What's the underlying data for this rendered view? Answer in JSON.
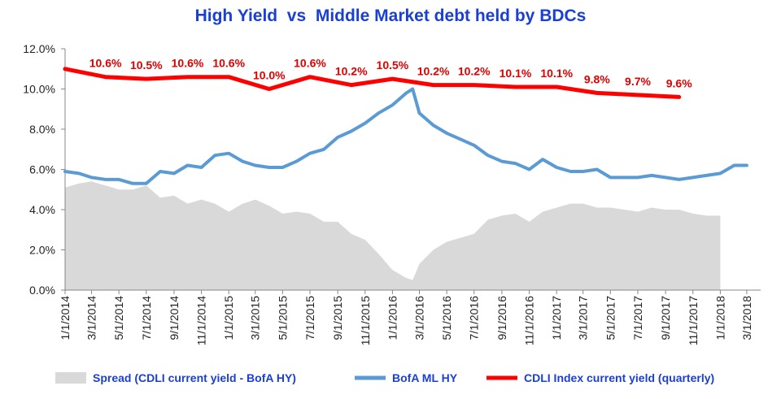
{
  "chart_data": {
    "type": "line",
    "title": "High Yield  vs  Middle Market debt held by BDCs",
    "ylim": [
      0,
      12
    ],
    "yticks": [
      "0.0%",
      "2.0%",
      "4.0%",
      "6.0%",
      "8.0%",
      "10.0%",
      "12.0%"
    ],
    "xticks": [
      "1/1/2014",
      "3/1/2014",
      "5/1/2014",
      "7/1/2014",
      "9/1/2014",
      "11/1/2014",
      "1/1/2015",
      "3/1/2015",
      "5/1/2015",
      "7/1/2015",
      "9/1/2015",
      "11/1/2015",
      "1/1/2016",
      "3/1/2016",
      "5/1/2016",
      "7/1/2016",
      "9/1/2016",
      "11/1/2016",
      "1/1/2017",
      "3/1/2017",
      "5/1/2017",
      "7/1/2017",
      "9/1/2017",
      "11/1/2017",
      "1/1/2018",
      "3/1/2018"
    ],
    "grid": false,
    "legend_position": "bottom",
    "series": [
      {
        "name": "Spread (CDLI current yield - BofA HY)",
        "kind": "area",
        "color": "#d9d9d9",
        "points": [
          [
            "1/1/2014",
            5.1
          ],
          [
            "2/1/2014",
            5.3
          ],
          [
            "3/1/2014",
            5.4
          ],
          [
            "4/1/2014",
            5.2
          ],
          [
            "5/1/2014",
            5.0
          ],
          [
            "6/1/2014",
            5.0
          ],
          [
            "7/1/2014",
            5.2
          ],
          [
            "8/1/2014",
            4.6
          ],
          [
            "9/1/2014",
            4.7
          ],
          [
            "10/1/2014",
            4.3
          ],
          [
            "11/1/2014",
            4.5
          ],
          [
            "12/1/2014",
            4.3
          ],
          [
            "1/1/2015",
            3.9
          ],
          [
            "2/1/2015",
            4.3
          ],
          [
            "3/1/2015",
            4.5
          ],
          [
            "4/1/2015",
            4.2
          ],
          [
            "5/1/2015",
            3.8
          ],
          [
            "6/1/2015",
            3.9
          ],
          [
            "7/1/2015",
            3.8
          ],
          [
            "8/1/2015",
            3.4
          ],
          [
            "9/1/2015",
            3.4
          ],
          [
            "10/1/2015",
            2.8
          ],
          [
            "11/1/2015",
            2.5
          ],
          [
            "12/1/2015",
            1.8
          ],
          [
            "1/1/2016",
            1.0
          ],
          [
            "2/1/2016",
            0.6
          ],
          [
            "2/15/2016",
            0.5
          ],
          [
            "3/1/2016",
            1.3
          ],
          [
            "4/1/2016",
            2.0
          ],
          [
            "5/1/2016",
            2.4
          ],
          [
            "6/1/2016",
            2.6
          ],
          [
            "7/1/2016",
            2.8
          ],
          [
            "8/1/2016",
            3.5
          ],
          [
            "9/1/2016",
            3.7
          ],
          [
            "10/1/2016",
            3.8
          ],
          [
            "11/1/2016",
            3.4
          ],
          [
            "12/1/2016",
            3.9
          ],
          [
            "1/1/2017",
            4.1
          ],
          [
            "2/1/2017",
            4.3
          ],
          [
            "3/1/2017",
            4.3
          ],
          [
            "4/1/2017",
            4.1
          ],
          [
            "5/1/2017",
            4.1
          ],
          [
            "6/1/2017",
            4.0
          ],
          [
            "7/1/2017",
            3.9
          ],
          [
            "8/1/2017",
            4.1
          ],
          [
            "9/1/2017",
            4.0
          ],
          [
            "10/1/2017",
            4.0
          ],
          [
            "11/1/2017",
            3.8
          ],
          [
            "12/1/2017",
            3.7
          ],
          [
            "1/1/2018",
            3.7
          ]
        ]
      },
      {
        "name": "BofA ML HY",
        "kind": "line",
        "color": "#5b9bd5",
        "points": [
          [
            "1/1/2014",
            5.9
          ],
          [
            "2/1/2014",
            5.8
          ],
          [
            "3/1/2014",
            5.6
          ],
          [
            "4/1/2014",
            5.5
          ],
          [
            "5/1/2014",
            5.5
          ],
          [
            "6/1/2014",
            5.3
          ],
          [
            "7/1/2014",
            5.3
          ],
          [
            "8/1/2014",
            5.9
          ],
          [
            "9/1/2014",
            5.8
          ],
          [
            "10/1/2014",
            6.2
          ],
          [
            "11/1/2014",
            6.1
          ],
          [
            "12/1/2014",
            6.7
          ],
          [
            "1/1/2015",
            6.8
          ],
          [
            "2/1/2015",
            6.4
          ],
          [
            "3/1/2015",
            6.2
          ],
          [
            "4/1/2015",
            6.1
          ],
          [
            "5/1/2015",
            6.1
          ],
          [
            "6/1/2015",
            6.4
          ],
          [
            "7/1/2015",
            6.8
          ],
          [
            "8/1/2015",
            7.0
          ],
          [
            "9/1/2015",
            7.6
          ],
          [
            "10/1/2015",
            7.9
          ],
          [
            "11/1/2015",
            8.3
          ],
          [
            "12/1/2015",
            8.8
          ],
          [
            "1/1/2016",
            9.2
          ],
          [
            "2/1/2016",
            9.8
          ],
          [
            "2/15/2016",
            10.0
          ],
          [
            "3/1/2016",
            8.8
          ],
          [
            "4/1/2016",
            8.2
          ],
          [
            "5/1/2016",
            7.8
          ],
          [
            "6/1/2016",
            7.5
          ],
          [
            "7/1/2016",
            7.2
          ],
          [
            "8/1/2016",
            6.7
          ],
          [
            "9/1/2016",
            6.4
          ],
          [
            "10/1/2016",
            6.3
          ],
          [
            "11/1/2016",
            6.0
          ],
          [
            "12/1/2016",
            6.5
          ],
          [
            "1/1/2017",
            6.1
          ],
          [
            "2/1/2017",
            5.9
          ],
          [
            "3/1/2017",
            5.9
          ],
          [
            "4/1/2017",
            6.0
          ],
          [
            "5/1/2017",
            5.6
          ],
          [
            "6/1/2017",
            5.6
          ],
          [
            "7/1/2017",
            5.6
          ],
          [
            "8/1/2017",
            5.7
          ],
          [
            "9/1/2017",
            5.6
          ],
          [
            "10/1/2017",
            5.5
          ],
          [
            "11/1/2017",
            5.6
          ],
          [
            "12/1/2017",
            5.7
          ],
          [
            "1/1/2018",
            5.8
          ],
          [
            "2/1/2018",
            6.2
          ],
          [
            "3/1/2018",
            6.2
          ]
        ]
      },
      {
        "name": "CDLI Index current yield (quarterly)",
        "kind": "line",
        "color": "#ff0000",
        "points": [
          [
            "1/1/2014",
            11.0
          ],
          [
            "4/1/2014",
            10.6
          ],
          [
            "7/1/2014",
            10.5
          ],
          [
            "10/1/2014",
            10.6
          ],
          [
            "1/1/2015",
            10.6
          ],
          [
            "4/1/2015",
            10.0
          ],
          [
            "7/1/2015",
            10.6
          ],
          [
            "10/1/2015",
            10.2
          ],
          [
            "1/1/2016",
            10.5
          ],
          [
            "4/1/2016",
            10.2
          ],
          [
            "7/1/2016",
            10.2
          ],
          [
            "10/1/2016",
            10.1
          ],
          [
            "1/1/2017",
            10.1
          ],
          [
            "4/1/2017",
            9.8
          ],
          [
            "7/1/2017",
            9.7
          ],
          [
            "10/1/2017",
            9.6
          ]
        ]
      }
    ],
    "data_labels": [
      {
        "x": "4/1/2014",
        "text": "10.6%"
      },
      {
        "x": "7/1/2014",
        "text": "10.5%"
      },
      {
        "x": "10/1/2014",
        "text": "10.6%"
      },
      {
        "x": "1/1/2015",
        "text": "10.6%"
      },
      {
        "x": "4/1/2015",
        "text": "10.0%"
      },
      {
        "x": "7/1/2015",
        "text": "10.6%"
      },
      {
        "x": "10/1/2015",
        "text": "10.2%"
      },
      {
        "x": "1/1/2016",
        "text": "10.5%"
      },
      {
        "x": "4/1/2016",
        "text": "10.2%"
      },
      {
        "x": "7/1/2016",
        "text": "10.2%"
      },
      {
        "x": "10/1/2016",
        "text": "10.1%"
      },
      {
        "x": "1/1/2017",
        "text": "10.1%"
      },
      {
        "x": "4/1/2017",
        "text": "9.8%"
      },
      {
        "x": "7/1/2017",
        "text": "9.7%"
      },
      {
        "x": "10/1/2017",
        "text": "9.6%"
      }
    ]
  }
}
